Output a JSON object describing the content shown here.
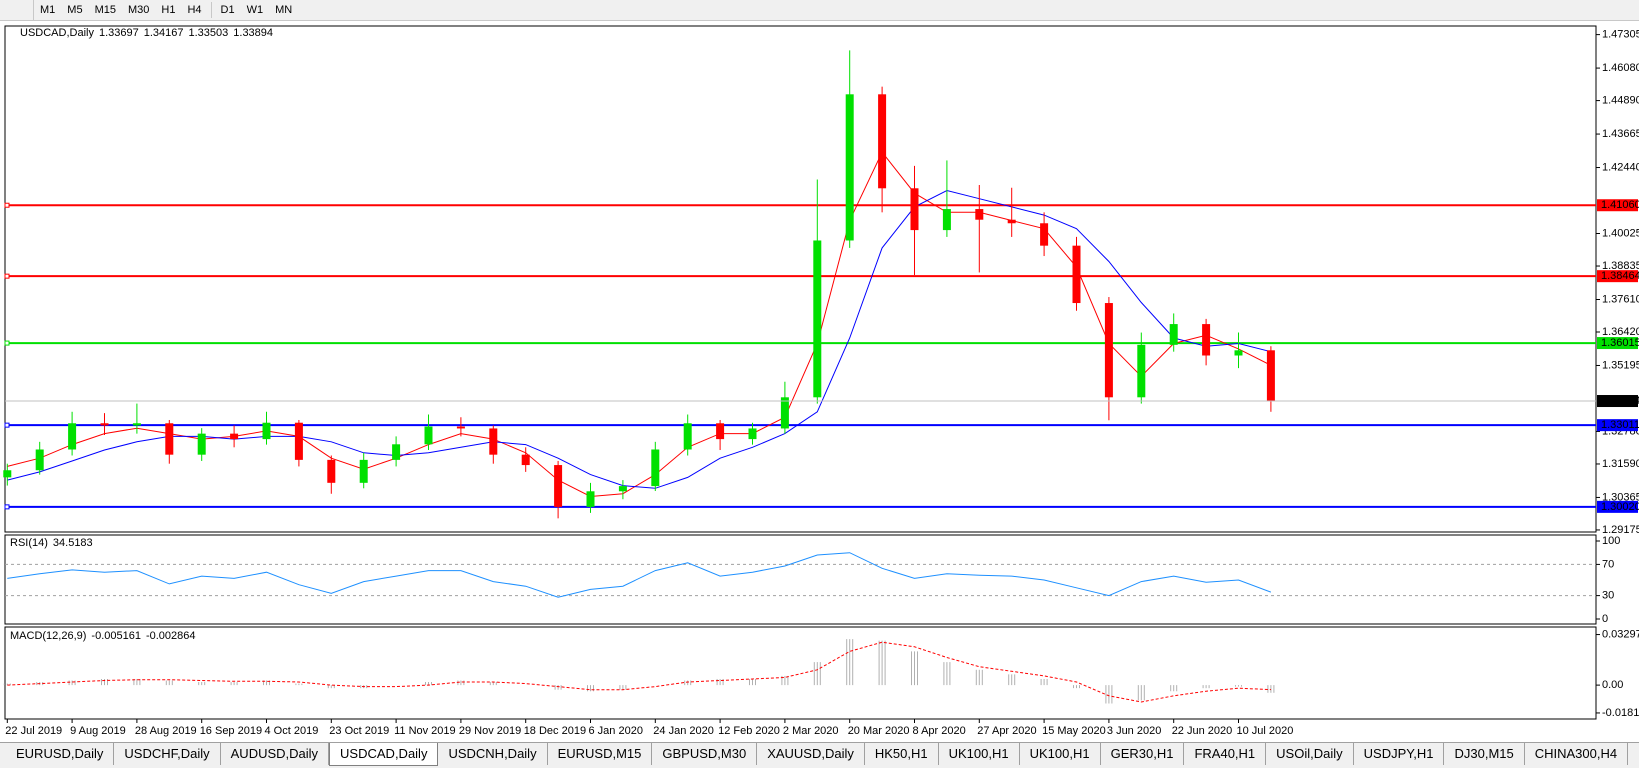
{
  "toolbar": [
    "M1",
    "M5",
    "M15",
    "M30",
    "H1",
    "H4",
    "D1",
    "W1",
    "MN"
  ],
  "tabs": [
    "EURUSD,Daily",
    "USDCHF,Daily",
    "AUDUSD,Daily",
    "USDCAD,Daily",
    "USDCNH,Daily",
    "EURUSD,M15",
    "GBPUSD,M30",
    "XAUUSD,Daily",
    "HK50,H1",
    "UK100,H1",
    "UK100,H1",
    "GER30,H1",
    "FRA40,H1",
    "USOil,Daily",
    "USDJPY,H1",
    "DJ30,M15",
    "CHINA300,H4"
  ],
  "active_tab": 3,
  "chart_data": [
    {
      "type": "candlestick",
      "symbol": "USDCAD,Daily",
      "ohlc": [
        1.33697,
        1.34167,
        1.33503,
        1.33894
      ],
      "up_color": "#00e000",
      "down_color": "#ff0000",
      "categories": [
        "22 Jul 2019",
        null,
        "9 Aug 2019",
        null,
        "28 Aug 2019",
        null,
        "16 Sep 2019",
        null,
        "4 Oct 2019",
        null,
        "23 Oct 2019",
        null,
        "11 Nov 2019",
        null,
        "29 Nov 2019",
        null,
        "18 Dec 2019",
        null,
        "6 Jan 2020",
        null,
        "24 Jan 2020",
        null,
        "12 Feb 2020",
        null,
        "2 Mar 2020",
        null,
        "20 Mar 2020",
        null,
        "8 Apr 2020",
        null,
        "27 Apr 2020",
        null,
        "15 May 2020",
        null,
        "3 Jun 2020",
        null,
        "22 Jun 2020",
        null,
        "10 Jul 2020",
        null
      ],
      "open": [
        1.311,
        1.3136,
        1.3212,
        1.3308,
        1.33,
        1.3308,
        1.3193,
        1.327,
        1.325,
        1.331,
        1.3174,
        1.309,
        1.3174,
        1.3231,
        1.3296,
        1.3289,
        1.3193,
        1.3155,
        1.3002,
        1.3059,
        1.3078,
        1.3212,
        1.3308,
        1.325,
        1.3289,
        1.3403,
        1.3977,
        1.4512,
        1.4168,
        1.4015,
        1.4092,
        1.4053,
        1.404,
        1.3958,
        1.3748,
        1.3403,
        1.3595,
        1.3671,
        1.3556,
        1.3575
      ],
      "high": [
        1.316,
        1.324,
        1.335,
        1.3345,
        1.338,
        1.332,
        1.329,
        1.33,
        1.335,
        1.332,
        1.319,
        1.32,
        1.326,
        1.334,
        1.333,
        1.33,
        1.322,
        1.317,
        1.309,
        1.31,
        1.324,
        1.334,
        1.332,
        1.331,
        1.346,
        1.42,
        1.4673,
        1.454,
        1.425,
        1.427,
        1.418,
        1.417,
        1.408,
        1.399,
        1.377,
        1.364,
        1.371,
        1.369,
        1.364,
        1.359
      ],
      "low": [
        1.308,
        1.312,
        1.319,
        1.3265,
        1.327,
        1.316,
        1.317,
        1.322,
        1.323,
        1.315,
        1.305,
        1.307,
        1.315,
        1.321,
        1.326,
        1.316,
        1.313,
        1.296,
        1.298,
        1.303,
        1.306,
        1.319,
        1.321,
        1.323,
        1.327,
        1.338,
        1.395,
        1.408,
        1.385,
        1.399,
        1.386,
        1.399,
        1.392,
        1.372,
        1.3319,
        1.338,
        1.357,
        1.352,
        1.351,
        1.335
      ],
      "close": [
        1.3136,
        1.3212,
        1.3308,
        1.33,
        1.3308,
        1.3193,
        1.327,
        1.325,
        1.331,
        1.3174,
        1.309,
        1.3174,
        1.3231,
        1.3296,
        1.3289,
        1.3193,
        1.3155,
        1.3002,
        1.3059,
        1.3078,
        1.3212,
        1.3308,
        1.325,
        1.3289,
        1.3403,
        1.3977,
        1.4512,
        1.4168,
        1.4015,
        1.4092,
        1.4053,
        1.404,
        1.3958,
        1.3748,
        1.3403,
        1.3595,
        1.3671,
        1.3556,
        1.3575,
        1.3389
      ],
      "ma": [
        {
          "color": "#ff0000",
          "values": [
            1.315,
            1.318,
            1.323,
            1.327,
            1.329,
            1.327,
            1.325,
            1.326,
            1.328,
            1.326,
            1.318,
            1.314,
            1.318,
            1.323,
            1.327,
            1.325,
            1.32,
            1.31,
            1.304,
            1.305,
            1.312,
            1.322,
            1.327,
            1.327,
            1.333,
            1.36,
            1.405,
            1.43,
            1.415,
            1.408,
            1.408,
            1.405,
            1.402,
            1.388,
            1.36,
            1.348,
            1.36,
            1.363,
            1.358,
            1.352
          ]
        },
        {
          "color": "#0000ff",
          "values": [
            1.31,
            1.313,
            1.317,
            1.321,
            1.324,
            1.326,
            1.326,
            1.325,
            1.326,
            1.326,
            1.324,
            1.32,
            1.319,
            1.32,
            1.322,
            1.324,
            1.323,
            1.318,
            1.312,
            1.308,
            1.307,
            1.311,
            1.318,
            1.322,
            1.327,
            1.335,
            1.362,
            1.395,
            1.41,
            1.416,
            1.413,
            1.41,
            1.407,
            1.402,
            1.39,
            1.375,
            1.362,
            1.359,
            1.36,
            1.357
          ]
        }
      ],
      "levels": [
        {
          "value": 1.4106,
          "label": "1.41060",
          "color": "#ff0000"
        },
        {
          "value": 1.38464,
          "label": "1.38464",
          "color": "#ff0000"
        },
        {
          "value": 1.36015,
          "label": "1.36015",
          "color": "#00e000"
        },
        {
          "value": 1.33011,
          "label": "1.33011",
          "color": "#0000ff"
        },
        {
          "value": 1.3002,
          "label": "1.30020",
          "color": "#0000ff"
        }
      ],
      "ylim": [
        1.291,
        1.4762
      ],
      "yticks": [
        1.47305,
        {
          "value": 1.4608,
          "label": "1.46080"
        },
        {
          "value": 1.4489,
          "label": "1.44890"
        },
        1.43665,
        {
          "value": 1.4244,
          "label": "1.42440"
        },
        1.40025,
        1.38835,
        {
          "value": 1.3761,
          "label": "1.37610"
        },
        {
          "value": 1.3642,
          "label": "1.36420"
        },
        1.35195,
        {
          "value": 1.3278,
          "label": "1.32780"
        },
        {
          "value": 1.3159,
          "label": "1.31590"
        },
        1.30365,
        1.29175
      ]
    },
    {
      "type": "line",
      "name": "RSI(14)",
      "last": 34.5183,
      "color": "#1e90ff",
      "values": [
        52,
        58,
        63,
        60,
        62,
        45,
        55,
        52,
        60,
        44,
        33,
        48,
        55,
        62,
        62,
        48,
        42,
        28,
        38,
        42,
        62,
        72,
        55,
        60,
        68,
        82,
        85,
        65,
        52,
        58,
        56,
        55,
        50,
        40,
        30,
        48,
        55,
        47,
        50,
        34.5
      ],
      "levels": [
        70,
        30
      ],
      "ylim": [
        -6.4,
        107.7
      ],
      "yticks": [
        100,
        70,
        30,
        0
      ]
    },
    {
      "type": "macd",
      "name": "MACD(12,26,9)",
      "last": [
        -0.005161,
        -0.002864
      ],
      "hist_color": "#b0b0b0",
      "signal_color": "#ff0000",
      "values": [
        0.001,
        0.002,
        0.003,
        0.004,
        0.004,
        0.003,
        0.002,
        0.002,
        0.003,
        0.001,
        -0.002,
        -0.002,
        0.0,
        0.002,
        0.003,
        0.002,
        0.0,
        -0.003,
        -0.004,
        -0.003,
        0.0,
        0.003,
        0.004,
        0.004,
        0.006,
        0.015,
        0.03,
        0.029,
        0.022,
        0.015,
        0.01,
        0.007,
        0.004,
        -0.002,
        -0.012,
        -0.01,
        -0.004,
        -0.002,
        -0.001,
        -0.005
      ],
      "signal": [
        0.0,
        0.001,
        0.002,
        0.003,
        0.0035,
        0.0035,
        0.003,
        0.0025,
        0.0025,
        0.002,
        0.0,
        -0.001,
        -0.001,
        0.0,
        0.002,
        0.002,
        0.001,
        -0.001,
        -0.003,
        -0.003,
        -0.001,
        0.002,
        0.003,
        0.004,
        0.005,
        0.01,
        0.022,
        0.028,
        0.025,
        0.018,
        0.012,
        0.009,
        0.006,
        0.002,
        -0.007,
        -0.011,
        -0.007,
        -0.004,
        -0.002,
        -0.0029
      ],
      "ylim": [
        -0.0221,
        0.0379
      ],
      "yticks": [
        0.032972,
        {
          "value": 0,
          "label": "0.00"
        },
        -0.01815
      ]
    }
  ]
}
